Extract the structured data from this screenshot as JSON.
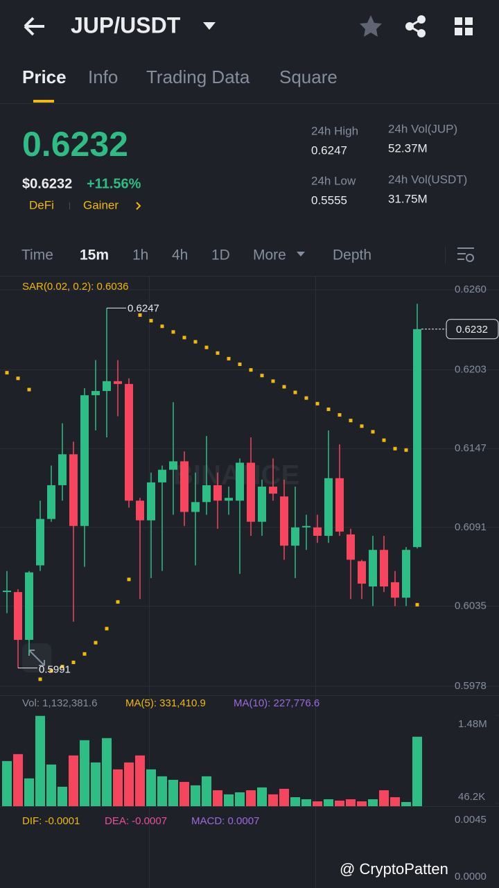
{
  "header": {
    "pair": "JUP/USDT"
  },
  "tabs": [
    "Price",
    "Info",
    "Trading Data",
    "Square"
  ],
  "price": {
    "last": "0.6232",
    "usd": "$0.6232",
    "change": "+11.56%",
    "tags": [
      "DeFi",
      "Gainer"
    ]
  },
  "stats": [
    {
      "label": "24h High",
      "value": "0.6247"
    },
    {
      "label": "24h Vol(JUP)",
      "value": "52.37M"
    },
    {
      "label": "24h Low",
      "value": "0.5555"
    },
    {
      "label": "24h Vol(USDT)",
      "value": "31.75M"
    }
  ],
  "intervals": [
    "Time",
    "15m",
    "1h",
    "4h",
    "1D",
    "More",
    "Depth"
  ],
  "chart_data": {
    "type": "candlestick",
    "indicator": "SAR(0.02, 0.2): 0.6036",
    "watermark": "BINANCE",
    "open": [
      0.6045,
      0.6045,
      0.6011,
      0.6064,
      0.6097,
      0.6121,
      0.6143,
      0.6092,
      0.6185,
      0.6188,
      0.6195,
      0.6193,
      0.611,
      0.6096,
      0.6123,
      0.6132,
      0.6138,
      0.6102,
      0.6109,
      0.6121,
      0.611,
      0.611,
      0.6137,
      0.6095,
      0.612,
      0.6113,
      0.6078,
      0.6091,
      0.6091,
      0.6085,
      0.6126,
      0.6086,
      0.6067,
      0.6049,
      0.6075,
      0.6052,
      0.6041,
      0.6077
    ],
    "close": [
      0.6046,
      0.6011,
      0.6059,
      0.6097,
      0.6121,
      0.6143,
      0.6092,
      0.6185,
      0.6188,
      0.6195,
      0.6193,
      0.611,
      0.6096,
      0.6123,
      0.6132,
      0.6138,
      0.6102,
      0.6109,
      0.6121,
      0.611,
      0.6112,
      0.6137,
      0.6095,
      0.612,
      0.6115,
      0.6078,
      0.6091,
      0.6092,
      0.6085,
      0.6126,
      0.6088,
      0.6068,
      0.6051,
      0.6075,
      0.6049,
      0.6041,
      0.6075,
      0.6232
    ],
    "high": [
      0.606,
      0.6047,
      0.606,
      0.611,
      0.6135,
      0.6165,
      0.6152,
      0.619,
      0.621,
      0.6247,
      0.621,
      0.6197,
      0.6112,
      0.613,
      0.6135,
      0.618,
      0.6145,
      0.613,
      0.6156,
      0.613,
      0.612,
      0.614,
      0.6155,
      0.6125,
      0.614,
      0.6125,
      0.612,
      0.61,
      0.61,
      0.616,
      0.615,
      0.609,
      0.6068,
      0.6085,
      0.6085,
      0.606,
      0.6077,
      0.625
    ],
    "low": [
      0.603,
      0.5991,
      0.6,
      0.606,
      0.6095,
      0.611,
      0.6024,
      0.6063,
      0.616,
      0.6155,
      0.617,
      0.6105,
      0.604,
      0.6055,
      0.606,
      0.61,
      0.6092,
      0.6064,
      0.61,
      0.609,
      0.61,
      0.6058,
      0.6085,
      0.6085,
      0.611,
      0.6068,
      0.6055,
      0.6075,
      0.608,
      0.608,
      0.6085,
      0.604,
      0.604,
      0.6035,
      0.6045,
      0.6035,
      0.6035,
      0.6076
    ],
    "sar": [
      0.6201,
      0.6197,
      0.6189,
      0.5983,
      0.5989,
      0.5992,
      0.5995,
      0.6001,
      0.6009,
      0.6019,
      0.6038,
      0.6054,
      0.6242,
      0.6238,
      0.6234,
      0.623,
      0.6226,
      0.6223,
      0.6219,
      0.6215,
      0.6211,
      0.6207,
      0.6203,
      0.6199,
      0.6195,
      0.6191,
      0.6187,
      0.6183,
      0.6179,
      0.6175,
      0.6171,
      0.6167,
      0.6163,
      0.6159,
      0.6153,
      0.6147,
      0.6146,
      0.6036
    ],
    "ylim": [
      0.5978,
      0.626
    ],
    "yticks": [
      {
        "value": 0.626,
        "label": "0.6260"
      },
      0.6203,
      0.6147,
      0.6091,
      0.6035,
      0.5978
    ],
    "colors": {
      "up": "#2ebd85",
      "down": "#f6465d",
      "sar": "#f0b90b"
    }
  },
  "volume": {
    "legend": [
      "Vol: 1,132,381.6",
      "MA(5): 331,410.9",
      "MA(10): 227,776.6"
    ],
    "values": [
      736000,
      849000,
      453000,
      1472000,
      679000,
      317000,
      827000,
      1076000,
      713000,
      1110000,
      600000,
      713000,
      827000,
      600000,
      487000,
      430000,
      396000,
      340000,
      487000,
      260000,
      193000,
      226000,
      260000,
      306000,
      193000,
      283000,
      147000,
      113000,
      79000,
      113000,
      91000,
      113000,
      79000,
      113000,
      260000,
      147000,
      68000,
      1132381.6
    ],
    "ylim": [
      0,
      1480000
    ],
    "yticks": [
      {
        "value": 1480000,
        "label": "1.48M"
      },
      {
        "value": 46200,
        "label": "46.2K"
      }
    ]
  },
  "macd": {
    "legend": [
      "DIF: -0.0001",
      "DEA: -0.0007",
      "MACD: 0.0007"
    ],
    "axis": [
      "0.0045",
      "0.0000"
    ]
  },
  "watermark": "@ CryptoPatten"
}
